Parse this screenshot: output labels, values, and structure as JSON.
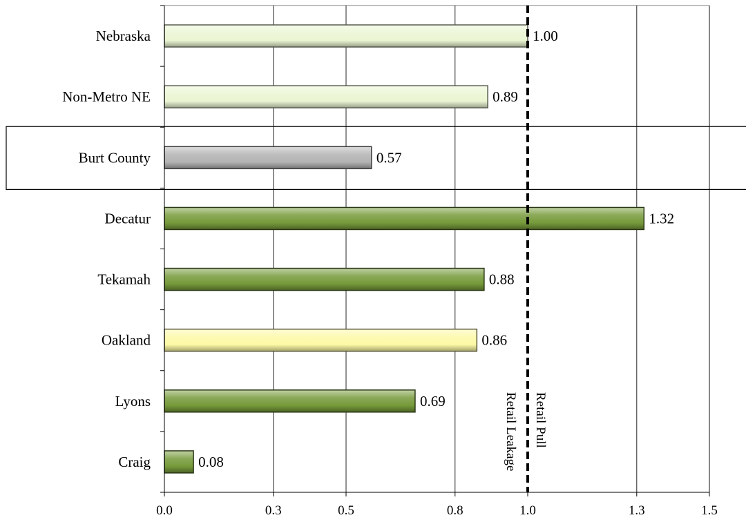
{
  "colors": {
    "light_green": "#eaf5d2",
    "gray": "#b3b3b3",
    "olive_green": "#769a3a",
    "light_yellow": "#fdf9a6",
    "gridline": "#000000",
    "reference_line": "#000000"
  },
  "chart_data": {
    "type": "bar",
    "orientation": "horizontal",
    "title": "",
    "xlabel": "",
    "ylabel": "",
    "xlim": [
      0,
      1.5
    ],
    "grid": "vertical",
    "legend": "none",
    "x_ticks": [
      {
        "value": 0.0,
        "label": "0.0"
      },
      {
        "value": 0.3,
        "label": "0.3"
      },
      {
        "value": 0.5,
        "label": "0.5"
      },
      {
        "value": 0.8,
        "label": "0.8"
      },
      {
        "value": 1.0,
        "label": "1.0"
      },
      {
        "value": 1.3,
        "label": "1.3"
      },
      {
        "value": 1.5,
        "label": "1.5"
      }
    ],
    "categories": [
      "Nebraska",
      "Non-Metro NE",
      "Burt County",
      "Decatur",
      "Tekamah",
      "Oakland",
      "Lyons",
      "Craig"
    ],
    "values": [
      1.0,
      0.89,
      0.57,
      1.32,
      0.88,
      0.86,
      0.69,
      0.08
    ],
    "value_labels": [
      "1.00",
      "0.89",
      "0.57",
      "1.32",
      "0.88",
      "0.86",
      "0.69",
      "0.08"
    ],
    "bar_colors": [
      "light_green",
      "light_green",
      "gray",
      "olive_green",
      "olive_green",
      "light_yellow",
      "olive_green",
      "olive_green"
    ],
    "highlighted_category": "Burt County",
    "reference_line": {
      "value": 1.0,
      "style": "dashed",
      "label_left": "Retail Leakage",
      "label_right": "Retail Pull"
    }
  }
}
